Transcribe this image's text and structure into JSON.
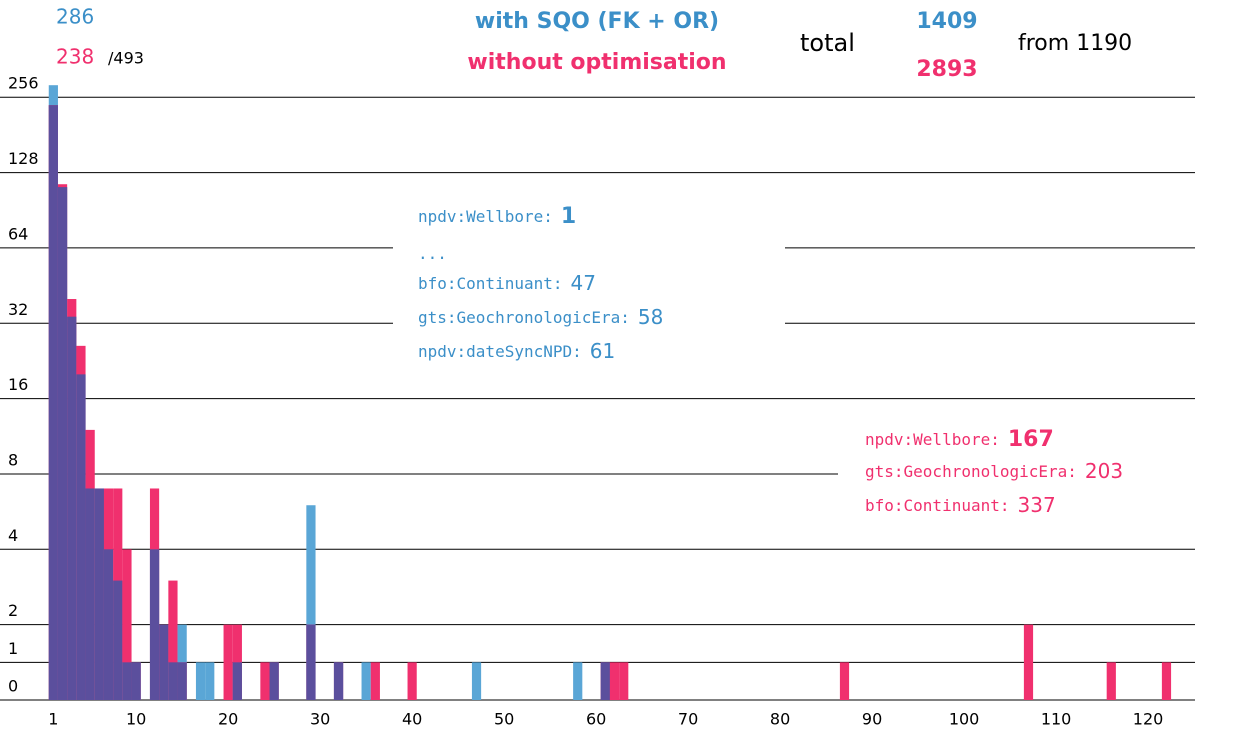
{
  "chart_data": {
    "type": "bar",
    "title": "with SQO (FK + OR)",
    "subtitle": "without optimisation",
    "header": {
      "counts": [
        286,
        238
      ],
      "of": "/493",
      "total_label": "total",
      "totals": [
        1409,
        2893
      ],
      "from": "from 1190"
    },
    "x": [
      1,
      2,
      3,
      4,
      5,
      6,
      7,
      8,
      9,
      10,
      12,
      13,
      14,
      15,
      17,
      18,
      20,
      21,
      24,
      25,
      29,
      32,
      35,
      36,
      40,
      47,
      58,
      61,
      62,
      63,
      87,
      107,
      116,
      122
    ],
    "series": [
      {
        "name": "with SQO (FK + OR)",
        "color": "#5aa6d6",
        "values": [
          286,
          112,
          34,
          20,
          7,
          7,
          4,
          3,
          1,
          1,
          4,
          2,
          1,
          2,
          1,
          1,
          0,
          1,
          0,
          1,
          6,
          1,
          1,
          0,
          0,
          1,
          1,
          1,
          0,
          0,
          0,
          0,
          0,
          0
        ]
      },
      {
        "name": "without optimisation",
        "color": "#f0306e",
        "values": [
          238,
          115,
          40,
          26,
          12,
          7,
          7,
          7,
          4,
          1,
          7,
          2,
          3,
          1,
          0,
          0,
          2,
          2,
          1,
          1,
          2,
          1,
          0,
          1,
          1,
          0,
          0,
          1,
          1,
          1,
          1,
          2,
          1,
          1
        ]
      }
    ],
    "overlap_color": "#5b4f9d",
    "xlim": [
      -4.8,
      125.1
    ],
    "xticks": [
      1,
      10,
      20,
      30,
      40,
      50,
      60,
      70,
      80,
      90,
      100,
      110,
      120
    ],
    "ylim": [
      0,
      300
    ],
    "yticks": [
      0,
      1,
      2,
      4,
      8,
      16,
      32,
      64,
      128,
      256
    ],
    "yscale": "symlog",
    "linthresh": 2,
    "grid": true,
    "annotations": [
      {
        "color": "#3b8fc8",
        "lines": [
          {
            "name": "npdv:Wellbore:",
            "count": 1
          },
          {
            "name": "..."
          },
          {
            "name": "bfo:Continuant:",
            "count": 47
          },
          {
            "name": "gts:GeochronologicEra:",
            "count": 58
          },
          {
            "name": "npdv:dateSyncNPD:",
            "count": 61
          }
        ]
      },
      {
        "color": "#f0306e",
        "lines": [
          {
            "name": "npdv:Wellbore:",
            "count": 167
          },
          {
            "name": "gts:GeochronologicEra:",
            "count": 203
          },
          {
            "name": "bfo:Continuant:",
            "count": 337
          }
        ]
      }
    ]
  }
}
